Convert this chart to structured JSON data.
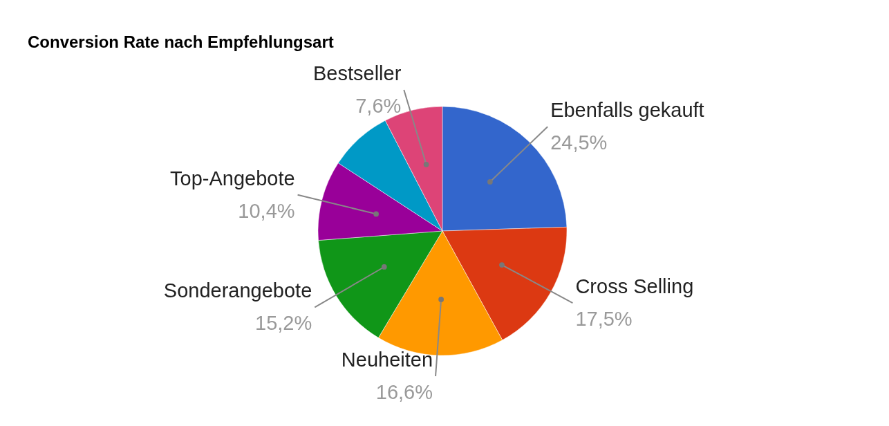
{
  "chart_data": {
    "type": "pie",
    "title": "Conversion Rate nach Empfehlungsart",
    "categories": [
      "Ebenfalls gekauft",
      "Cross Selling",
      "Neuheiten",
      "Sonderangebote",
      "Top-Angebote",
      null,
      "Bestseller"
    ],
    "values": [
      24.5,
      17.5,
      16.6,
      15.2,
      10.4,
      8.2,
      7.6
    ],
    "value_labels": [
      "24,5%",
      "17,5%",
      "16,6%",
      "15,2%",
      "10,4%",
      null,
      "7,6%"
    ],
    "colors": [
      "#3366cc",
      "#dc3912",
      "#ff9900",
      "#109618",
      "#990099",
      "#0099c6",
      "#dd4477"
    ],
    "legend": false
  }
}
